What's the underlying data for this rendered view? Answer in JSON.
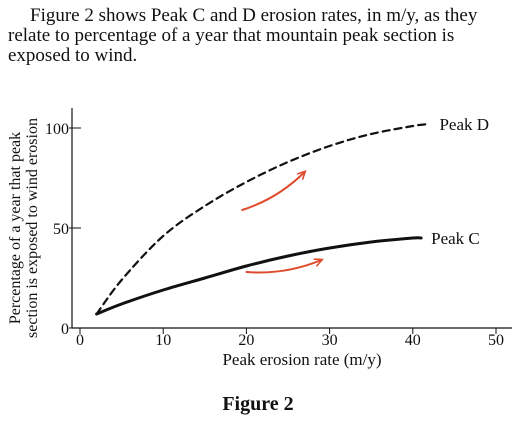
{
  "intro_text": "Figure 2 shows Peak C and D erosion rates, in m/y, as they relate to percentage of a year that mountain peak section is exposed to wind.",
  "figure_caption": "Figure 2",
  "colors": {
    "curve": "#111111",
    "arrow": "#e04a2c"
  },
  "chart_data": {
    "type": "line",
    "title": "",
    "xlabel": "Peak erosion rate (m/y)",
    "ylabel_lines": [
      "Percentage of a year that peak",
      "section is exposed to wind erosion"
    ],
    "xlim": [
      0,
      50
    ],
    "ylim": [
      0,
      100
    ],
    "xticks": [
      0,
      10,
      20,
      30,
      40,
      50
    ],
    "yticks": [
      0,
      50,
      100
    ],
    "grid": false,
    "legend": "direct labels at line ends",
    "series": [
      {
        "name": "Peak D",
        "line_style": "dashed",
        "x": [
          2,
          5,
          10,
          15,
          20,
          25,
          30,
          35,
          40,
          42
        ],
        "y": [
          7,
          24,
          46,
          61,
          73,
          83,
          91,
          97,
          101,
          102
        ]
      },
      {
        "name": "Peak C",
        "line_style": "solid",
        "x": [
          2,
          5,
          10,
          15,
          20,
          25,
          30,
          35,
          40,
          41
        ],
        "y": [
          7,
          12,
          19,
          25,
          31,
          36,
          40,
          43,
          45,
          45
        ]
      }
    ],
    "annotations": [
      {
        "type": "arrow",
        "near_series": "Peak D",
        "direction": "up-right",
        "from": [
          19.5,
          59
        ],
        "to": [
          27,
          78
        ]
      },
      {
        "type": "arrow",
        "near_series": "Peak C",
        "direction": "up-right",
        "from": [
          20,
          28
        ],
        "to": [
          29,
          34
        ]
      }
    ]
  }
}
